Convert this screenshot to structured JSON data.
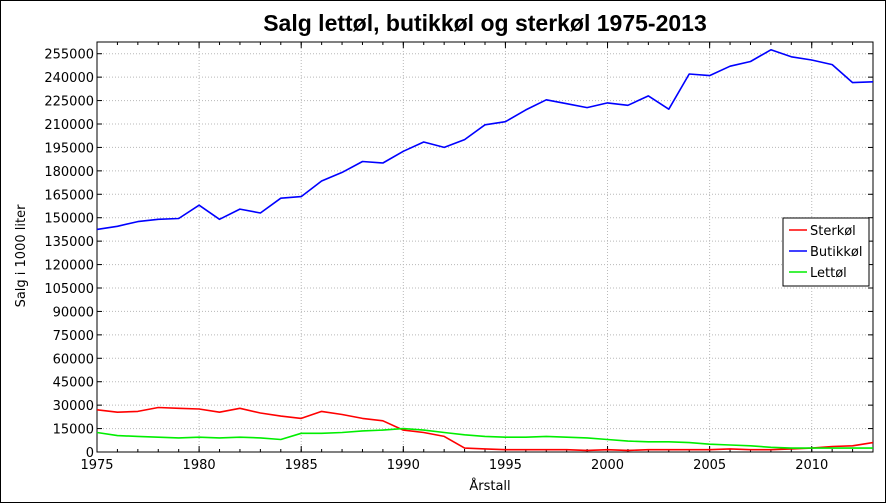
{
  "chart_data": {
    "type": "line",
    "title": "Salg lettøl, butikkøl og sterkøl 1975-2013",
    "xlabel": "Årstall",
    "ylabel": "Salg i 1000 liter",
    "xlim": [
      1975,
      2013
    ],
    "ylim": [
      0,
      262500
    ],
    "x_ticks": [
      1975,
      1980,
      1985,
      1990,
      1995,
      2000,
      2005,
      2010
    ],
    "y_ticks": [
      0,
      15000,
      30000,
      45000,
      60000,
      75000,
      90000,
      105000,
      120000,
      135000,
      150000,
      165000,
      180000,
      195000,
      210000,
      225000,
      240000,
      255000
    ],
    "grid": true,
    "legend_position": "center-right",
    "x": [
      1975,
      1976,
      1977,
      1978,
      1979,
      1980,
      1981,
      1982,
      1983,
      1984,
      1985,
      1986,
      1987,
      1988,
      1989,
      1990,
      1991,
      1992,
      1993,
      1994,
      1995,
      1996,
      1997,
      1998,
      1999,
      2000,
      2001,
      2002,
      2003,
      2004,
      2005,
      2006,
      2007,
      2008,
      2009,
      2010,
      2011,
      2012,
      2013
    ],
    "series": [
      {
        "name": "Sterkøl",
        "color": "#ff0000",
        "values": [
          27000,
          25500,
          26000,
          28500,
          28000,
          27500,
          25500,
          28000,
          25000,
          23000,
          21500,
          26000,
          24000,
          21500,
          20000,
          14000,
          12500,
          10000,
          2500,
          2000,
          1500,
          1500,
          1500,
          1500,
          1000,
          1500,
          1000,
          1500,
          1500,
          1500,
          1500,
          2000,
          1500,
          1500,
          2000,
          2500,
          3500,
          4000,
          6000
        ]
      },
      {
        "name": "Butikkøl",
        "color": "#0000ff",
        "values": [
          142500,
          144500,
          147500,
          149000,
          149500,
          158000,
          149000,
          155500,
          153000,
          162500,
          163500,
          173500,
          179000,
          186000,
          185000,
          192500,
          198500,
          195000,
          200000,
          209500,
          211500,
          219000,
          225500,
          223000,
          220500,
          223500,
          222000,
          228000,
          219500,
          242000,
          241000,
          247000,
          250000,
          257500,
          253000,
          251000,
          248000,
          236500,
          237000
        ]
      },
      {
        "name": "Lettøl",
        "color": "#00ee00",
        "values": [
          12500,
          10500,
          10000,
          9500,
          9000,
          9500,
          9000,
          9500,
          9000,
          8000,
          12000,
          12000,
          12500,
          13500,
          14000,
          15000,
          14000,
          12500,
          11000,
          10000,
          9500,
          9500,
          10000,
          9500,
          9000,
          8000,
          7000,
          6500,
          6500,
          6000,
          5000,
          4500,
          4000,
          3000,
          2500,
          2500,
          2500,
          2500,
          2500
        ]
      }
    ]
  }
}
